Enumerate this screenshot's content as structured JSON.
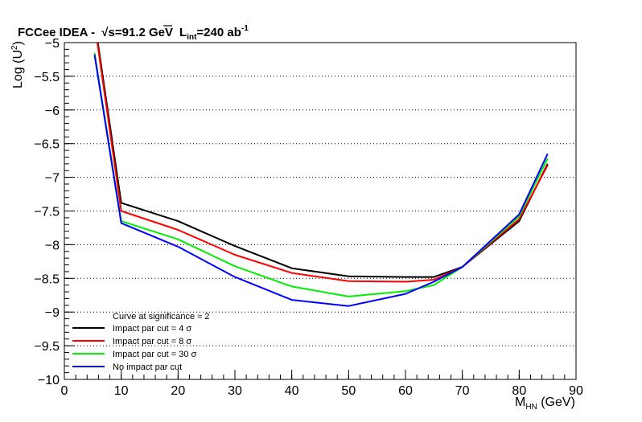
{
  "chart_data": {
    "type": "line",
    "title_main": "FCCee IDEA - ",
    "title_sqrt": "√s",
    "title_energy": "=91.2 GeV",
    "title_lumi_L": "L",
    "title_lumi_sub": "int",
    "title_lumi_val": "=240 ab",
    "title_lumi_sup": "-1",
    "ylabel_main": "Log (U",
    "ylabel_sup": "2",
    "ylabel_end": ")",
    "xlabel_main": "M",
    "xlabel_sub": "HN",
    "xlabel_unit": " (GeV)",
    "xlim": [
      0,
      90
    ],
    "ylim": [
      -10,
      -5
    ],
    "xticks": [
      0,
      10,
      20,
      30,
      40,
      50,
      60,
      70,
      80,
      90
    ],
    "yticks": [
      -10,
      -9.5,
      -9,
      -8.5,
      -8,
      -7.5,
      -7,
      -6.5,
      -6,
      -5.5,
      -5
    ],
    "ytick_labels": [
      "−10",
      "−9.5",
      "−9",
      "−8.5",
      "−8",
      "−7.5",
      "−7",
      "−6.5",
      "−6",
      "−5.5",
      "−5"
    ],
    "xtick_labels": [
      "0",
      "10",
      "20",
      "30",
      "40",
      "50",
      "60",
      "70",
      "80",
      "90"
    ],
    "grid": "horizontal dotted",
    "legend_header": "Curve at significance ≈ 2",
    "legend_placement": "bottom-left",
    "series": [
      {
        "name": "Impact par cut = 4 σ",
        "color": "#000000",
        "x": [
          5.8,
          10,
          20,
          30,
          40,
          50,
          60,
          65,
          70,
          80,
          85
        ],
        "y": [
          -4.95,
          -7.38,
          -7.65,
          -8.02,
          -8.35,
          -8.47,
          -8.48,
          -8.48,
          -8.33,
          -7.65,
          -6.8
        ]
      },
      {
        "name": "Impact par cut = 8 σ",
        "color": "#ff0000",
        "x": [
          5.8,
          10,
          20,
          30,
          40,
          50,
          60,
          65,
          70,
          80,
          85
        ],
        "y": [
          -5.0,
          -7.5,
          -7.78,
          -8.15,
          -8.42,
          -8.54,
          -8.55,
          -8.52,
          -8.33,
          -7.62,
          -6.82
        ]
      },
      {
        "name": "Impact par cut = 30 σ",
        "color": "#00ee00",
        "x": [
          5.3,
          10,
          20,
          30,
          40,
          50,
          60,
          65,
          70,
          80,
          85
        ],
        "y": [
          -5.15,
          -7.65,
          -7.92,
          -8.32,
          -8.62,
          -8.77,
          -8.69,
          -8.6,
          -8.33,
          -7.58,
          -6.72
        ]
      },
      {
        "name": "No impact par cut",
        "color": "#0000ff",
        "x": [
          5.3,
          10,
          20,
          30,
          40,
          50,
          60,
          65,
          70,
          80,
          85
        ],
        "y": [
          -5.18,
          -7.68,
          -8.03,
          -8.48,
          -8.82,
          -8.91,
          -8.73,
          -8.55,
          -8.33,
          -7.55,
          -6.65
        ]
      }
    ]
  }
}
